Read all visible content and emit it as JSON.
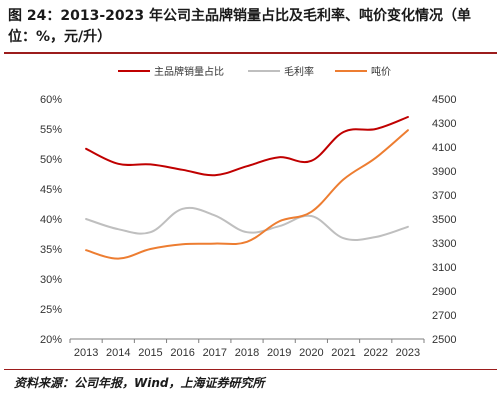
{
  "figure": {
    "title": "图 24：2013-2023 年公司主品牌销量占比及毛利率、吨价变化情况（单位：%，元/升）",
    "source": "资料来源：公司年报，Wind，上海证券研究所"
  },
  "colors": {
    "main_brand": "#c00000",
    "gross_margin": "#bfbfbf",
    "ton_price": "#ed7d31",
    "rule": "#9c1c1c"
  },
  "chart_data": {
    "type": "line",
    "categories": [
      "2013",
      "2014",
      "2015",
      "2016",
      "2017",
      "2018",
      "2019",
      "2020",
      "2021",
      "2022",
      "2023"
    ],
    "series": [
      {
        "name": "主品牌销量占比",
        "axis": "left",
        "values": [
          51.7,
          49.2,
          49.1,
          48.2,
          47.3,
          48.8,
          50.3,
          49.7,
          54.5,
          55.0,
          57.0
        ]
      },
      {
        "name": "毛利率",
        "axis": "left",
        "values": [
          40.0,
          38.3,
          37.8,
          41.7,
          40.6,
          37.8,
          38.8,
          40.5,
          36.8,
          37.0,
          38.7
        ]
      },
      {
        "name": "吨价",
        "axis": "right",
        "values": [
          3240,
          3170,
          3250,
          3290,
          3295,
          3310,
          3480,
          3560,
          3830,
          4010,
          4240
        ]
      }
    ],
    "y_left": {
      "min": 20,
      "max": 60,
      "step": 5,
      "ticks": [
        "20%",
        "25%",
        "30%",
        "35%",
        "40%",
        "45%",
        "50%",
        "55%",
        "60%"
      ]
    },
    "y_right": {
      "min": 2500,
      "max": 4500,
      "step": 200,
      "ticks": [
        "2500",
        "2700",
        "2900",
        "3100",
        "3300",
        "3500",
        "3700",
        "3900",
        "4100",
        "4300",
        "4500"
      ]
    },
    "legend_position": "top-center",
    "grid": false
  }
}
